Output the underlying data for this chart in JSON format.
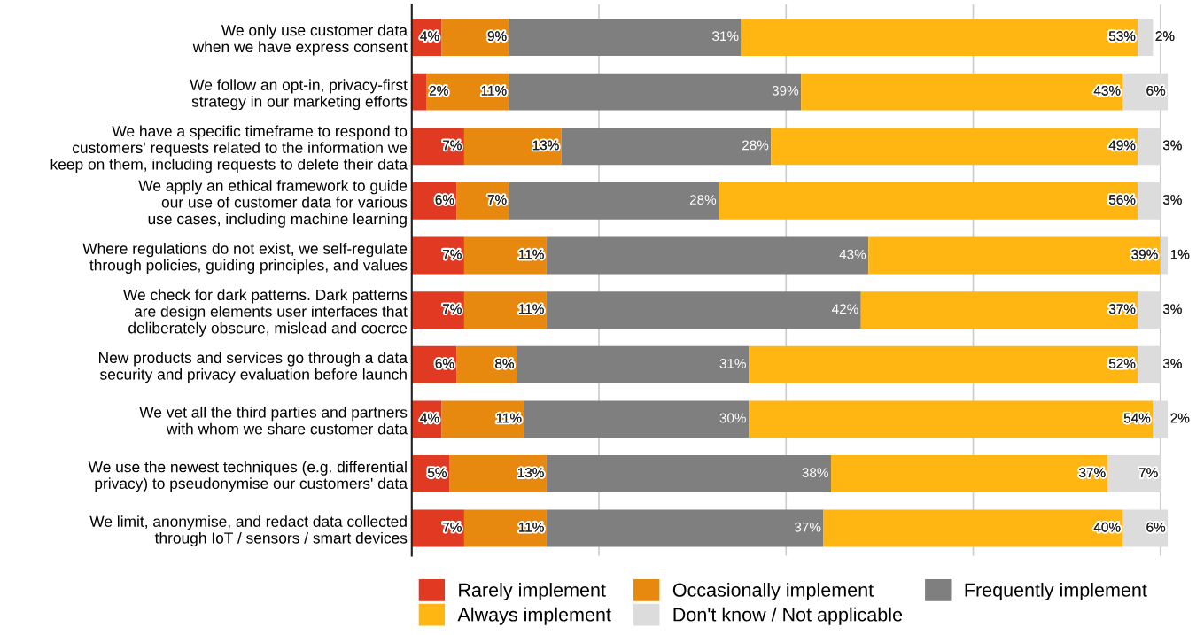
{
  "chart_data": {
    "type": "bar",
    "orientation": "horizontal",
    "stacked": true,
    "categories": [
      "We only use customer data\nwhen we have express consent",
      "We follow an opt-in, privacy-first\nstrategy in our marketing efforts",
      "We have a specific timeframe to respond to\ncustomers' requests related to the information we\nkeep on them, including requests to delete their data",
      "We apply an ethical framework to guide\nour use of customer data for various\nuse cases, including machine learning",
      "Where regulations do not exist, we self-regulate\nthrough policies, guiding principles, and values",
      "We check for dark patterns. Dark patterns\nare design elements user interfaces that\ndeliberately obscure, mislead and coerce",
      "New products and services go through a data\nsecurity and privacy evaluation before launch",
      "We vet all the third parties and partners\nwith whom we share customer data",
      "We use the newest techniques (e.g. differential\nprivacy) to pseudonymise our customers' data",
      "We limit, anonymise, and redact data collected\nthrough IoT / sensors / smart devices"
    ],
    "series": [
      {
        "name": "Rarely implement",
        "color": "#e03a22",
        "values": [
          4,
          2,
          7,
          6,
          7,
          7,
          6,
          4,
          5,
          7
        ],
        "value_labels": [
          "4%",
          "2%",
          "7%",
          "6%",
          "7%",
          "7%",
          "6%",
          "4%",
          "5%",
          "7%"
        ]
      },
      {
        "name": "Occasionally implement",
        "color": "#e8890f",
        "values": [
          9,
          11,
          13,
          7,
          11,
          11,
          8,
          11,
          13,
          11
        ],
        "value_labels": [
          "9%",
          "11%",
          "13%",
          "7%",
          "11%",
          "11%",
          "8%",
          "11%",
          "13%",
          "11%"
        ]
      },
      {
        "name": "Frequently implement",
        "color": "#7f7f7f",
        "values": [
          31,
          39,
          28,
          28,
          43,
          42,
          31,
          30,
          38,
          37
        ],
        "value_labels": [
          "31%",
          "39%",
          "28%",
          "28%",
          "43%",
          "42%",
          "31%",
          "30%",
          "38%",
          "37%"
        ]
      },
      {
        "name": "Always implement",
        "color": "#ffb612",
        "values": [
          53,
          43,
          49,
          56,
          39,
          37,
          52,
          54,
          37,
          40
        ],
        "value_labels": [
          "53%",
          "43%",
          "49%",
          "56%",
          "39%",
          "37%",
          "52%",
          "54%",
          "37%",
          "40%"
        ]
      },
      {
        "name": "Don't know / Not applicable",
        "color": "#dcdcdc",
        "values": [
          2,
          6,
          3,
          3,
          1,
          3,
          3,
          2,
          7,
          6
        ],
        "value_labels": [
          "2%",
          "6%",
          "3%",
          "3%",
          "1%",
          "3%",
          "3%",
          "2%",
          "7%",
          "6%"
        ]
      }
    ],
    "xlim": [
      0,
      101
    ],
    "xticks": [
      {
        "value": 0,
        "label": null
      },
      {
        "value": 25,
        "label": null
      },
      {
        "value": 50,
        "label": null
      },
      {
        "value": 75,
        "label": null
      },
      {
        "value": 100,
        "label": null
      }
    ],
    "grid": "x",
    "legend": "bottom",
    "tick_labels": "y"
  }
}
